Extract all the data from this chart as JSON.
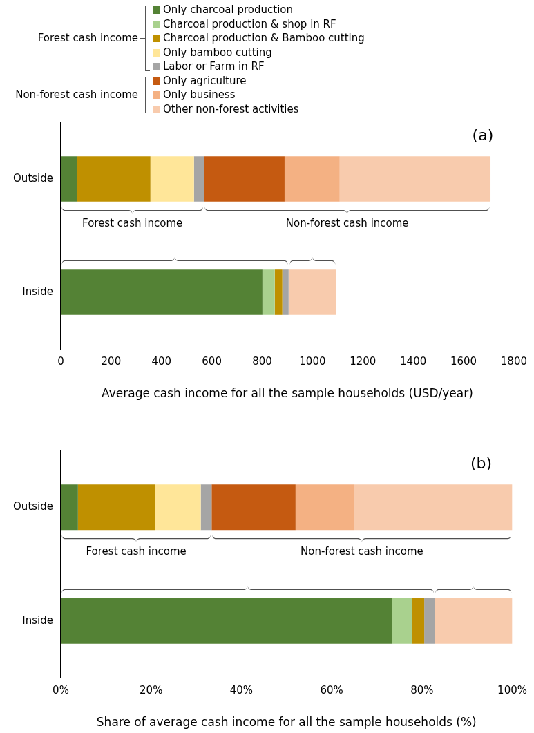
{
  "chart_data": [
    {
      "type": "bar",
      "orientation": "horizontal",
      "stacked": true,
      "title": "(a)",
      "xlabel": "Average cash income for all the sample households (USD/year)",
      "categories": [
        "Outside",
        "Inside"
      ],
      "series": [
        {
          "name": "Only charcoal production",
          "color": "#548235",
          "values": [
            64,
            801
          ]
        },
        {
          "name": "Charcoal production & shop in RF",
          "color": "#a9d18e",
          "values": [
            0,
            49
          ]
        },
        {
          "name": "Charcoal production & Bamboo cutting",
          "color": "#bf9000",
          "values": [
            292,
            30
          ]
        },
        {
          "name": "Only bamboo cutting",
          "color": "#ffe699",
          "values": [
            173,
            0
          ]
        },
        {
          "name": "Labor or Farm in RF",
          "color": "#a5a5a5",
          "values": [
            40,
            25
          ]
        },
        {
          "name": "Only agriculture",
          "color": "#c55a11",
          "values": [
            320,
            0
          ]
        },
        {
          "name": "Only business",
          "color": "#f4b183",
          "values": [
            219,
            0
          ]
        },
        {
          "name": "Other non-forest activities",
          "color": "#f8cbad",
          "values": [
            599,
            188
          ]
        }
      ],
      "xlim": [
        0,
        1800
      ],
      "xticks": [
        0,
        200,
        400,
        600,
        800,
        1000,
        1200,
        1400,
        1600,
        1800
      ],
      "grid": false,
      "legend": "top",
      "annotations": [
        "Forest cash income",
        "Non-forest cash income",
        "Forest cash income",
        "Non-forest cash income"
      ]
    },
    {
      "type": "bar",
      "orientation": "horizontal",
      "stacked": true,
      "title": "(b)",
      "xlabel": "Share of average cash income for all the sample households (%)",
      "categories": [
        "Outside",
        "Inside"
      ],
      "series": [
        {
          "color": "#548235",
          "values": [
            3.8,
            73.3
          ]
        },
        {
          "color": "#a9d18e",
          "values": [
            0,
            4.5
          ]
        },
        {
          "color": "#bf9000",
          "values": [
            17.1,
            2.7
          ]
        },
        {
          "color": "#ffe699",
          "values": [
            10.1,
            0
          ]
        },
        {
          "color": "#a5a5a5",
          "values": [
            2.4,
            2.3
          ]
        },
        {
          "color": "#c55a11",
          "values": [
            18.6,
            0
          ]
        },
        {
          "color": "#f4b183",
          "values": [
            12.9,
            0
          ]
        },
        {
          "color": "#f8cbad",
          "values": [
            35.1,
            17.2
          ]
        }
      ],
      "xlim": [
        0,
        100
      ],
      "xticks": [
        {
          "value": 0,
          "label": "0%"
        },
        {
          "value": 20,
          "label": "20%"
        },
        {
          "value": 40,
          "label": "40%"
        },
        {
          "value": 60,
          "label": "60%"
        },
        {
          "value": 80,
          "label": "80%"
        },
        {
          "value": 100,
          "label": "100%"
        }
      ],
      "grid": false,
      "legend": false,
      "annotations": [
        "Forest cash income",
        "Non-forest cash income"
      ]
    }
  ]
}
